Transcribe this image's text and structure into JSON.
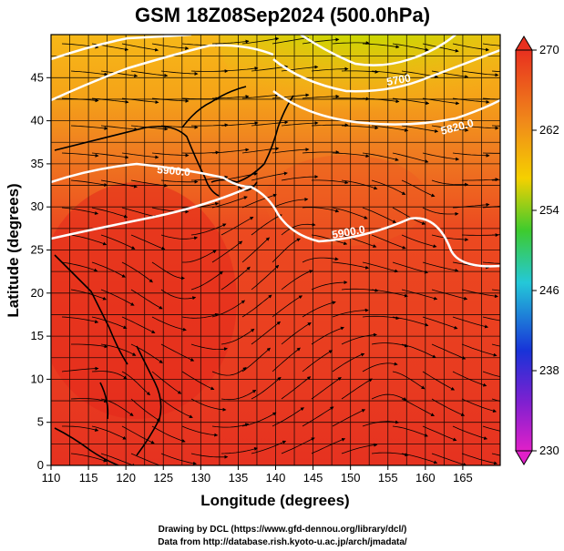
{
  "title": "GSM 18Z08Sep2024 (500.0hPa)",
  "xlabel": "Longitude (degrees)",
  "ylabel": "Latitude (degrees)",
  "x_ticks": [
    "110",
    "115",
    "120",
    "125",
    "130",
    "135",
    "140",
    "145",
    "150",
    "155",
    "160",
    "165"
  ],
  "y_ticks": [
    "0",
    "5",
    "10",
    "15",
    "20",
    "25",
    "30",
    "35",
    "40",
    "45"
  ],
  "colorbar_ticks": [
    "230",
    "238",
    "246",
    "254",
    "262",
    "270"
  ],
  "contour_labels": [
    "5900.0",
    "5900.0",
    "5820.0",
    "5700"
  ],
  "credits": {
    "line1": "Drawing by DCL (https://www.gfd-dennou.org/library/dcl/)",
    "line2": "Data from http://database.rish.kyoto-u.ac.jp/arch/jmadata/"
  },
  "colors": {
    "warm_red": "#e8341f",
    "orange": "#f07a1a",
    "yellow": "#f5d000",
    "green": "#3ecb2e",
    "cyan": "#24c8d8",
    "blue": "#1833d8",
    "magenta": "#e020c8",
    "contour": "#ffffff"
  },
  "map_data": {
    "variable": "temperature (K) with 500hPa geopotential height contours and streamlines",
    "lon_range": [
      110,
      170
    ],
    "lat_range": [
      0,
      50
    ],
    "colorbar_range": [
      230,
      270
    ]
  }
}
